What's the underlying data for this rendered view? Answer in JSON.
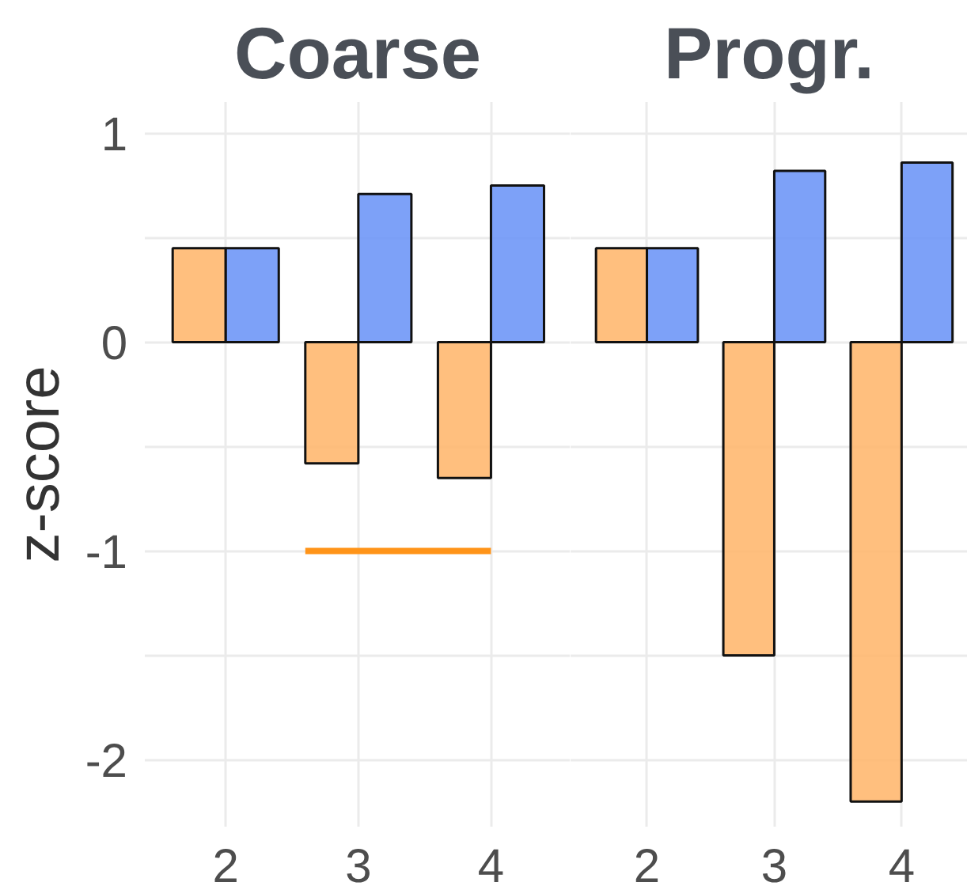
{
  "chart_data": [
    {
      "type": "bar",
      "title": "Coarse",
      "ylabel": "z-score",
      "x": [
        2,
        3,
        4
      ],
      "series": [
        {
          "color": "#ffb870",
          "values": [
            0.45,
            -0.58,
            -0.65
          ]
        },
        {
          "color": "#6f97f7",
          "values": [
            0.45,
            0.71,
            0.75
          ]
        },
        {
          "type": "line",
          "color": "#ff9419",
          "x": [
            2.6,
            4.0
          ],
          "values": [
            -1,
            -1
          ]
        }
      ],
      "xlim": [
        1.39,
        4.6
      ],
      "xticks": [
        2,
        3,
        4
      ],
      "ylim": [
        -2.32,
        1.15
      ],
      "yticks": [
        -2,
        {
          "value": -1.5,
          "label": null
        },
        -1,
        {
          "value": -0.5,
          "label": null
        },
        0,
        {
          "value": 0.5,
          "label": null
        },
        1
      ],
      "grid": true
    },
    {
      "type": "bar",
      "title": "Progr.",
      "x": [
        2,
        3,
        4
      ],
      "series": [
        {
          "color": "#ffb870",
          "values": [
            0.45,
            -1.5,
            -2.2
          ]
        },
        {
          "color": "#6f97f7",
          "values": [
            0.45,
            0.82,
            0.86
          ]
        }
      ],
      "xlim": [
        1.4,
        4.52
      ],
      "xticks": [
        2,
        3,
        4
      ],
      "ylim": [
        -2.32,
        1.15
      ],
      "yticks": [
        -2,
        {
          "value": -1.5,
          "label": null
        },
        -1,
        {
          "value": -0.5,
          "label": null
        },
        0,
        {
          "value": 0.5,
          "label": null
        },
        1
      ],
      "grid": true,
      "tick_labels": "x"
    }
  ]
}
